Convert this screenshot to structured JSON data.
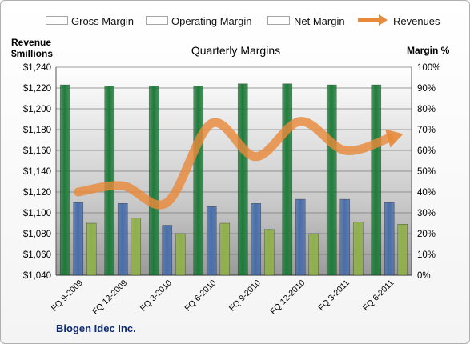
{
  "legend": [
    {
      "label": "Gross Margin",
      "color": "#1f7a3a",
      "shape": "bar"
    },
    {
      "label": "Operating Margin",
      "color": "#4a6ea9",
      "shape": "bar"
    },
    {
      "label": "Net Margin",
      "color": "#8fb04a",
      "shape": "bar"
    },
    {
      "label": "Revenues",
      "color": "#e88a3a",
      "shape": "arrow"
    }
  ],
  "left_axis_header": [
    "Revenue",
    "$millions"
  ],
  "right_axis_header": "Margin %",
  "company": "Biogen Idec Inc.",
  "chart_data": {
    "type": "bar",
    "title": "Quarterly Margins",
    "categories": [
      "FQ 9-2009",
      "FQ 12-2009",
      "FQ 3-2010",
      "FQ 6-2010",
      "FQ 9-2010",
      "FQ 12-2010",
      "FQ 3-2011",
      "FQ 6-2011"
    ],
    "bar_axis": {
      "label": "Margin %",
      "ylim": [
        0,
        100
      ],
      "ticks": [
        "0%",
        "10%",
        "20%",
        "30%",
        "40%",
        "50%",
        "60%",
        "70%",
        "80%",
        "90%",
        "100%"
      ]
    },
    "line_axis": {
      "label": "Revenue $millions",
      "ylim": [
        1040,
        1240
      ],
      "ticks": [
        "$1,040",
        "$1,060",
        "$1,080",
        "$1,100",
        "$1,120",
        "$1,140",
        "$1,160",
        "$1,180",
        "$1,200",
        "$1,220",
        "$1,240"
      ]
    },
    "series": [
      {
        "name": "Gross Margin",
        "color": "#1f7a3a",
        "values": [
          91.5,
          91,
          91,
          91,
          92,
          92,
          91.5,
          91.5
        ]
      },
      {
        "name": "Operating Margin",
        "color": "#4a6ea9",
        "values": [
          35,
          34.5,
          24,
          33,
          34.5,
          36.5,
          36.5,
          35
        ]
      },
      {
        "name": "Net Margin",
        "color": "#8fb04a",
        "values": [
          25,
          27.5,
          20,
          25,
          22,
          20,
          25.5,
          24.5
        ]
      },
      {
        "name": "Revenues",
        "type": "line",
        "color": "#e88a3a",
        "axis": "line_axis",
        "values": [
          1120,
          1126,
          1110,
          1186,
          1154,
          1188,
          1160,
          1172
        ]
      }
    ],
    "grid": true,
    "legend_position": "top"
  }
}
